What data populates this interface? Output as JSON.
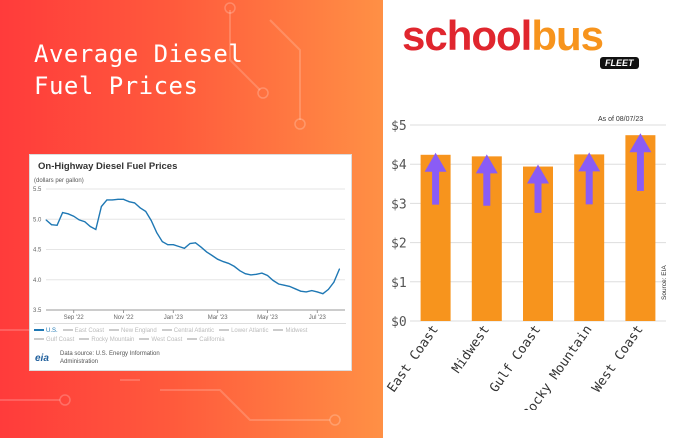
{
  "headline": {
    "line1": "Average Diesel",
    "line2": "Fuel Prices"
  },
  "brand": {
    "logo_a": "school",
    "logo_b": "bus",
    "badge": "FLEET"
  },
  "eia_panel": {
    "title": "On-Highway Diesel Fuel Prices",
    "unit": "(dollars per gallon)",
    "legend": [
      "U.S.",
      "East Coast",
      "New England",
      "Central Atlantic",
      "Lower Atlantic",
      "Midwest",
      "Gulf Coast",
      "Rocky Mountain",
      "West Coast",
      "California"
    ],
    "source_logo": "eia",
    "source_text_1": "Data source: U.S. Energy Information",
    "source_text_2": "Administration"
  },
  "bar_meta": {
    "as_of": "As of 08/07/23",
    "source": "Source: EIA"
  },
  "colors": {
    "bar": "#f7941d",
    "arrow": "#8a5cf6",
    "line": "#1f78b4",
    "brand_red": "#e0262e"
  },
  "chart_data": [
    {
      "type": "line",
      "title": "On-Highway Diesel Fuel Prices",
      "ylabel": "(dollars per gallon)",
      "ylim": [
        3.5,
        5.5
      ],
      "yticks": [
        "5.5",
        "5.0",
        "4.5",
        "4.0",
        "3.5"
      ],
      "xlim": [
        "2022-08-01",
        "2023-08-14"
      ],
      "xticks": [
        {
          "date": "2022-09-05",
          "label": "Sep '22"
        },
        {
          "date": "2022-11-07",
          "label": "Nov '22"
        },
        {
          "date": "2023-01-09",
          "label": "Jan '23"
        },
        {
          "date": "2023-03-06",
          "label": "Mar '23"
        },
        {
          "date": "2023-05-08",
          "label": "May '23"
        },
        {
          "date": "2023-07-10",
          "label": "Jul '23"
        }
      ],
      "grid": true,
      "legend_position": "bottom",
      "series": [
        {
          "name": "U.S.",
          "x": [
            "2022-08-01",
            "2022-08-08",
            "2022-08-15",
            "2022-08-22",
            "2022-08-29",
            "2022-09-05",
            "2022-09-12",
            "2022-09-19",
            "2022-09-26",
            "2022-10-03",
            "2022-10-10",
            "2022-10-17",
            "2022-10-24",
            "2022-10-31",
            "2022-11-07",
            "2022-11-14",
            "2022-11-21",
            "2022-11-28",
            "2022-12-05",
            "2022-12-12",
            "2022-12-19",
            "2022-12-26",
            "2023-01-02",
            "2023-01-09",
            "2023-01-16",
            "2023-01-23",
            "2023-01-30",
            "2023-02-06",
            "2023-02-13",
            "2023-02-20",
            "2023-02-27",
            "2023-03-06",
            "2023-03-13",
            "2023-03-20",
            "2023-03-27",
            "2023-04-03",
            "2023-04-10",
            "2023-04-17",
            "2023-04-24",
            "2023-05-01",
            "2023-05-08",
            "2023-05-15",
            "2023-05-22",
            "2023-05-29",
            "2023-06-05",
            "2023-06-12",
            "2023-06-19",
            "2023-06-26",
            "2023-07-03",
            "2023-07-10",
            "2023-07-17",
            "2023-07-24",
            "2023-07-31",
            "2023-08-07"
          ],
          "values": [
            4.99,
            4.91,
            4.9,
            5.11,
            5.09,
            5.05,
            4.99,
            4.96,
            4.88,
            4.83,
            5.21,
            5.32,
            5.32,
            5.33,
            5.33,
            5.29,
            5.27,
            5.19,
            5.13,
            4.98,
            4.78,
            4.63,
            4.58,
            4.58,
            4.55,
            4.52,
            4.6,
            4.61,
            4.54,
            4.46,
            4.4,
            4.34,
            4.3,
            4.27,
            4.22,
            4.15,
            4.1,
            4.08,
            4.09,
            4.11,
            4.07,
            3.99,
            3.93,
            3.91,
            3.89,
            3.85,
            3.81,
            3.8,
            3.82,
            3.8,
            3.77,
            3.84,
            3.96,
            4.18
          ]
        }
      ]
    },
    {
      "type": "bar",
      "categories": [
        "East Coast",
        "Midwest",
        "Gulf Coast",
        "Rocky Mountain",
        "West Coast"
      ],
      "values": [
        4.24,
        4.2,
        3.94,
        4.25,
        4.74
      ],
      "ylim": [
        0,
        5
      ],
      "yticks": [
        "$0",
        "$1",
        "$2",
        "$3",
        "$4",
        "$5"
      ],
      "grid": true
    }
  ]
}
